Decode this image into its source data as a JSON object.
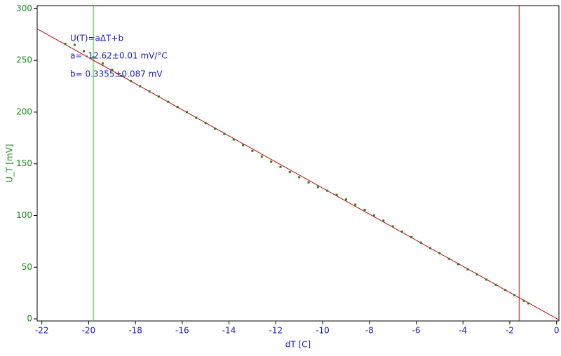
{
  "chart_data": {
    "type": "scatter",
    "x_label": "dT [C]",
    "y_label": "U_T [mV]",
    "annotations": [
      "U(T)=aΔT+b",
      "a= -12.62±0.01 mV/°C",
      "b= 0.3355±0.087 mV"
    ],
    "x": [
      -21.0,
      -20.6,
      -20.2,
      -19.8,
      -19.4,
      -19.0,
      -18.6,
      -18.2,
      -17.8,
      -17.4,
      -17.0,
      -16.6,
      -16.2,
      -15.8,
      -15.4,
      -15.0,
      -14.6,
      -14.2,
      -13.8,
      -13.4,
      -13.0,
      -12.6,
      -12.2,
      -11.8,
      -11.4,
      -11.0,
      -10.6,
      -10.2,
      -9.8,
      -9.4,
      -9.0,
      -8.6,
      -8.2,
      -7.8,
      -7.4,
      -7.0,
      -6.6,
      -6.2,
      -5.8,
      -5.4,
      -5.0,
      -4.6,
      -4.2,
      -3.8,
      -3.4,
      -3.0,
      -2.6,
      -2.2,
      -1.8,
      -1.4,
      -1.2
    ],
    "y": [
      266,
      265,
      259,
      253,
      247,
      241,
      235,
      230,
      225,
      220,
      215,
      210,
      205,
      200,
      194.5,
      189.3,
      184,
      179,
      173.5,
      168,
      162.5,
      157,
      152,
      147,
      142,
      137,
      132,
      127.5,
      124,
      120,
      115.5,
      110.5,
      105.5,
      100,
      95,
      89.5,
      84.3,
      79,
      73.8,
      68.5,
      63.4,
      58.2,
      53,
      48,
      43,
      38,
      33,
      28,
      23,
      17.5,
      15
    ],
    "color": "#2a7a1a",
    "fit_line": {
      "x": [
        -22.2,
        0.1
      ],
      "y": [
        280.5,
        -0.9
      ],
      "color": "#cc0000"
    },
    "vlines": [
      {
        "x": -19.8,
        "color": "#22cc22"
      },
      {
        "x": -1.6,
        "color": "#cc0000"
      }
    ],
    "xlim": [
      -22.2,
      0.1
    ],
    "ylim": [
      -2,
      303
    ],
    "xticks": [
      -22,
      -20,
      -18,
      -16,
      -14,
      -12,
      -10,
      -8,
      -6,
      -4,
      -2,
      0
    ],
    "yticks": [
      0,
      50,
      100,
      150,
      200,
      250,
      300
    ]
  }
}
